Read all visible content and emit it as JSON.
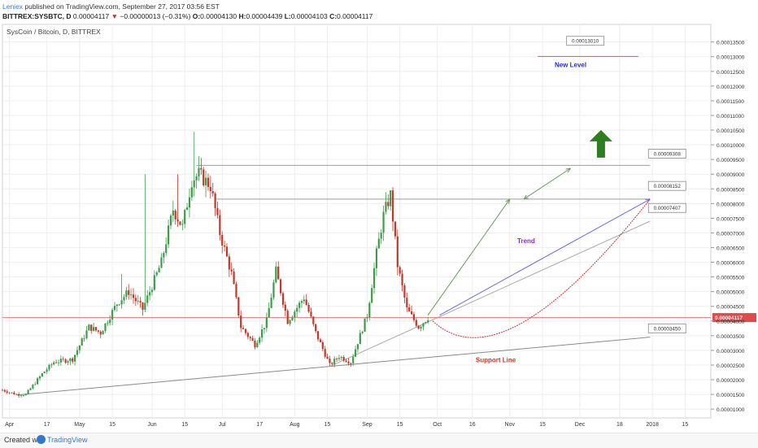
{
  "header": {
    "author": "Leniex",
    "published": " published on TradingView.com, September 27, 2017 03:56 EST",
    "symbol": "BITTREX:SYSBTC, D",
    "last": "0.00004117",
    "change": "−0.00000013 (−0.31%)",
    "o_label": "O:",
    "o": "0.00004130",
    "h_label": "H:",
    "h": "0.00004439",
    "l_label": "L:",
    "l": "0.00004103",
    "c_label": "C:",
    "c": "0.00004117"
  },
  "footer": {
    "created": "Created with",
    "brand": "TradingView"
  },
  "chart_data": {
    "type": "candlestick",
    "title": "SysCoin / Bitcoin, D, BITTREX",
    "y_range": [
      7e-06,
      0.000141
    ],
    "y_ticks": [
      "0.00001000",
      "0.00001500",
      "0.00002000",
      "0.00002500",
      "0.00003000",
      "0.00003500",
      "0.00004000",
      "0.00004500",
      "0.00005000",
      "0.00005500",
      "0.00006000",
      "0.00006500",
      "0.00007000",
      "0.00007500",
      "0.00008000",
      "0.00008500",
      "0.00009000",
      "0.00009500",
      "0.00010000",
      "0.00010500",
      "0.00011000",
      "0.00011500",
      "0.00012000",
      "0.00012500",
      "0.00013000",
      "0.00013500"
    ],
    "x_ticks": [
      {
        "label": "Apr",
        "date": "2017-04-01"
      },
      {
        "label": "17",
        "date": "2017-04-17"
      },
      {
        "label": "May",
        "date": "2017-05-01"
      },
      {
        "label": "15",
        "date": "2017-05-15"
      },
      {
        "label": "Jun",
        "date": "2017-06-01"
      },
      {
        "label": "15",
        "date": "2017-06-15"
      },
      {
        "label": "Jul",
        "date": "2017-07-01"
      },
      {
        "label": "17",
        "date": "2017-07-17"
      },
      {
        "label": "Aug",
        "date": "2017-08-01"
      },
      {
        "label": "15",
        "date": "2017-08-15"
      },
      {
        "label": "Sep",
        "date": "2017-09-01"
      },
      {
        "label": "15",
        "date": "2017-09-15"
      },
      {
        "label": "Oct",
        "date": "2017-10-01"
      },
      {
        "label": "16",
        "date": "2017-10-16"
      },
      {
        "label": "Nov",
        "date": "2017-11-01"
      },
      {
        "label": "15",
        "date": "2017-11-15"
      },
      {
        "label": "Dec",
        "date": "2017-12-01"
      },
      {
        "label": "18",
        "date": "2017-12-18"
      },
      {
        "label": "2018",
        "date": "2018-01-01"
      },
      {
        "label": "15",
        "date": "2018-01-15"
      }
    ],
    "x_start": "2017-03-29",
    "x_end": "2018-01-26",
    "price_path": [
      [
        "2017-03-29",
        1.65e-05
      ],
      [
        "2017-04-04",
        1.5e-05
      ],
      [
        "2017-04-08",
        1.5e-05
      ],
      [
        "2017-04-15",
        2.2e-05
      ],
      [
        "2017-04-20",
        2.6e-05
      ],
      [
        "2017-04-28",
        2.7e-05
      ],
      [
        "2017-05-05",
        3.8e-05
      ],
      [
        "2017-05-10",
        3.6e-05
      ],
      [
        "2017-05-17",
        4.6e-05
      ],
      [
        "2017-05-22",
        5e-05
      ],
      [
        "2017-05-28",
        4.4e-05
      ],
      [
        "2017-06-05",
        6e-05
      ],
      [
        "2017-06-10",
        7.8e-05
      ],
      [
        "2017-06-14",
        7.2e-05
      ],
      [
        "2017-06-18",
        8.8e-05
      ],
      [
        "2017-06-21",
        9e-05
      ],
      [
        "2017-06-26",
        8.6e-05
      ],
      [
        "2017-06-30",
        7e-05
      ],
      [
        "2017-07-05",
        5.6e-05
      ],
      [
        "2017-07-09",
        3.8e-05
      ],
      [
        "2017-07-15",
        3.2e-05
      ],
      [
        "2017-07-20",
        4e-05
      ],
      [
        "2017-07-24",
        5.7e-05
      ],
      [
        "2017-07-29",
        4e-05
      ],
      [
        "2017-08-05",
        4.8e-05
      ],
      [
        "2017-08-10",
        3.6e-05
      ],
      [
        "2017-08-16",
        2.5e-05
      ],
      [
        "2017-08-20",
        2.8e-05
      ],
      [
        "2017-08-25",
        2.6e-05
      ],
      [
        "2017-09-01",
        4.2e-05
      ],
      [
        "2017-09-05",
        6.3e-05
      ],
      [
        "2017-09-08",
        7.6e-05
      ],
      [
        "2017-09-11",
        8.3e-05
      ],
      [
        "2017-09-14",
        5.9e-05
      ],
      [
        "2017-09-18",
        4.4e-05
      ],
      [
        "2017-09-23",
        3.8e-05
      ],
      [
        "2017-09-27",
        4.12e-05
      ]
    ],
    "lines": [
      {
        "name": "support",
        "color": "#8a8a8a",
        "points": [
          [
            "2017-04-04",
            1.48e-05
          ],
          [
            "2017-12-31",
            3.45e-05
          ]
        ]
      },
      {
        "name": "trend-gray",
        "color": "#aaaaaa",
        "points": [
          [
            "2017-08-16",
            2.45e-05
          ],
          [
            "2017-12-31",
            7.4e-05
          ]
        ]
      },
      {
        "name": "resistance-1",
        "color": "#9e9e9e",
        "points": [
          [
            "2017-06-20",
            9.3e-05
          ],
          [
            "2017-12-31",
            9.3e-05
          ]
        ]
      },
      {
        "name": "resistance-2",
        "color": "#9e9e9e",
        "points": [
          [
            "2017-06-28",
            8.15e-05
          ],
          [
            "2017-12-31",
            8.15e-05
          ]
        ]
      },
      {
        "name": "new-level",
        "color": "#e05555",
        "points": [
          [
            "2017-11-13",
            0.0001301
          ],
          [
            "2017-12-26",
            0.0001301
          ]
        ]
      },
      {
        "name": "trend-blue",
        "color": "#6a6ae8",
        "points": [
          [
            "2017-10-02",
            4.2e-05
          ],
          [
            "2017-12-31",
            8.15e-05
          ]
        ]
      },
      {
        "name": "arrow-up",
        "color": "#6a9a5a",
        "points": [
          [
            "2017-09-27",
            4.2e-05
          ],
          [
            "2017-11-01",
            8.15e-05
          ]
        ]
      },
      {
        "name": "arrow-double",
        "color": "#6a9a5a",
        "points": [
          [
            "2017-11-07",
            8.15e-05
          ],
          [
            "2017-11-27",
            9.2e-05
          ]
        ]
      }
    ],
    "curve": {
      "color": "#cc3333",
      "from": [
        "2017-09-29",
        4e-05
      ],
      "control": [
        "2017-10-29",
        1.8e-05
      ],
      "to": [
        "2017-12-31",
        8.15e-05
      ]
    },
    "current_price": {
      "value": 4.117e-05,
      "label": "0.00004117"
    },
    "price_labels": [
      {
        "label": "0.00013010",
        "date": "2017-11-26",
        "value": 0.0001354
      },
      {
        "label": "0.00009308",
        "date": "2017-12-31",
        "value": 9.7e-05
      },
      {
        "label": "0.00008152",
        "date": "2017-12-31",
        "value": 8.6e-05
      },
      {
        "label": "0.00007407",
        "date": "2017-12-31",
        "value": 7.85e-05
      },
      {
        "label": "0.00003450",
        "date": "2017-12-31",
        "value": 3.75e-05
      }
    ],
    "annotations": [
      {
        "text": "New Level",
        "date": "2017-11-27",
        "value": 0.0001265,
        "color": "#2b2bd6"
      },
      {
        "text": "Trend",
        "date": "2017-11-08",
        "value": 6.65e-05,
        "color": "#8e2bd1"
      },
      {
        "text": "Support Line",
        "date": "2017-10-26",
        "value": 2.6e-05,
        "color": "#c0392b"
      }
    ],
    "big_arrow": {
      "date": "2017-12-10",
      "value": 9.95e-05,
      "color": "#2e7d1f"
    }
  }
}
